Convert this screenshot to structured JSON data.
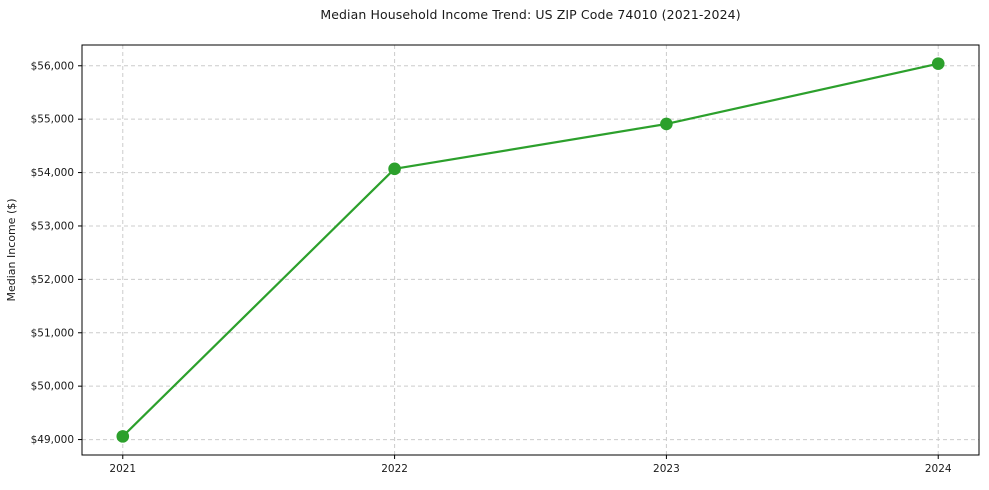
{
  "chart_data": {
    "type": "line",
    "title": "Median Household Income Trend: US ZIP Code 74010 (2021-2024)",
    "ylabel": "Median Income ($)",
    "xlabel": "",
    "x": [
      2021,
      2022,
      2023,
      2024
    ],
    "x_tick_labels": [
      "2021",
      "2022",
      "2023",
      "2024"
    ],
    "values": [
      49060,
      54070,
      54910,
      56040
    ],
    "y_ticks": [
      49000,
      50000,
      51000,
      52000,
      53000,
      54000,
      55000,
      56000
    ],
    "y_tick_labels": [
      "$49,000",
      "$50,000",
      "$51,000",
      "$52,000",
      "$53,000",
      "$54,000",
      "$55,000",
      "$56,000"
    ],
    "xlim": [
      2020.85,
      2024.15
    ],
    "ylim": [
      48711,
      56389
    ],
    "grid": true,
    "grid_style": "dashed",
    "legend": "none",
    "line_color": "#2ca02c",
    "marker_color": "#2ca02c",
    "grid_color": "#cccccc",
    "axis_color": "#000000",
    "tick_label_color": "#1a1a1a",
    "background": "#ffffff"
  }
}
